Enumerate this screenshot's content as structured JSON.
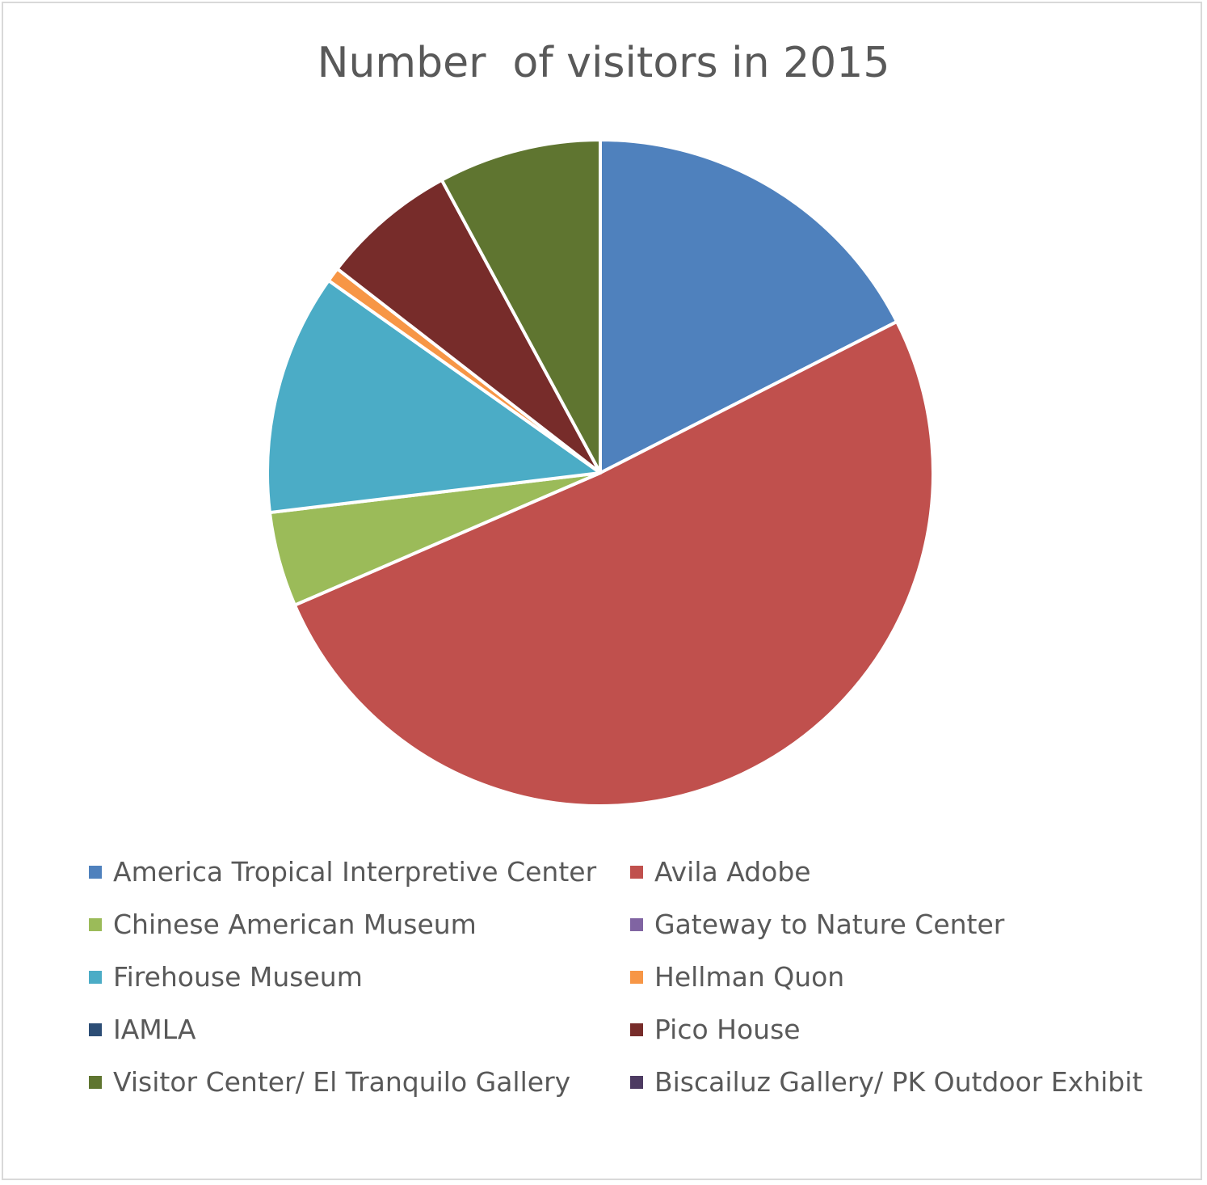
{
  "chart_data": {
    "type": "pie",
    "title": "Number  of visitors in 2015",
    "legend_position": "bottom",
    "start_angle_deg": 0,
    "direction": "clockwise",
    "slices": [
      {
        "label": "America Tropical Interpretive Center",
        "value": 17.5,
        "color": "#4f81bd"
      },
      {
        "label": "Avila Adobe",
        "value": 51.0,
        "color": "#c0504d"
      },
      {
        "label": "Chinese American Museum",
        "value": 4.6,
        "color": "#9bbb59"
      },
      {
        "label": "Gateway to Nature Center",
        "value": 0.0,
        "color": "#8064a2"
      },
      {
        "label": "Firehouse Museum",
        "value": 11.7,
        "color": "#4bacc6"
      },
      {
        "label": "Hellman Quon",
        "value": 0.7,
        "color": "#f79646"
      },
      {
        "label": "IAMLA",
        "value": 0.0,
        "color": "#2c4d75"
      },
      {
        "label": "Pico House",
        "value": 6.6,
        "color": "#772c2a"
      },
      {
        "label": "Visitor Center/ El Tranquilo Gallery",
        "value": 7.9,
        "color": "#5f7530"
      },
      {
        "label": "Biscailuz Gallery/ PK Outdoor Exhibit",
        "value": 0.0,
        "color": "#4d3b62"
      }
    ]
  }
}
